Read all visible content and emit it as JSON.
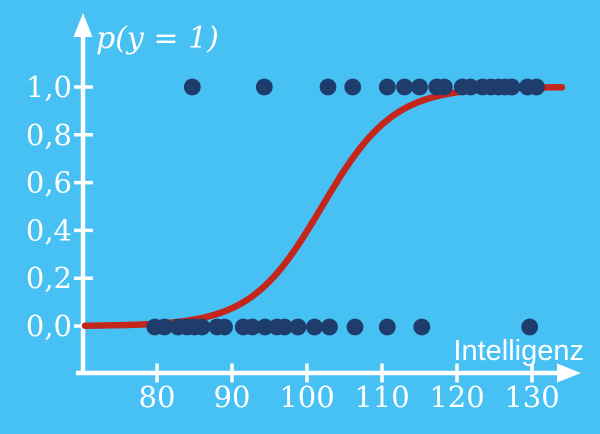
{
  "chart_data": {
    "type": "scatter",
    "title": "",
    "xlabel": "Intelligenz",
    "ylabel": "p(y = 1)",
    "xlim": [
      69,
      135.5
    ],
    "ylim": [
      0,
      1.2
    ],
    "grid": false,
    "legend": "none",
    "x_ticks": [
      {
        "value": 80,
        "label": "80"
      },
      {
        "value": 90,
        "label": "90"
      },
      {
        "value": 100,
        "label": "100"
      },
      {
        "value": 110,
        "label": "110"
      },
      {
        "value": 120,
        "label": "120"
      },
      {
        "value": 130,
        "label": "130"
      }
    ],
    "y_ticks": [
      {
        "value": 0.0,
        "label": "0,0"
      },
      {
        "value": 0.2,
        "label": "0,2"
      },
      {
        "value": 0.4,
        "label": "0,4"
      },
      {
        "value": 0.6,
        "label": "0,6"
      },
      {
        "value": 0.8,
        "label": "0,8"
      },
      {
        "value": 1.0,
        "label": "1,0"
      }
    ],
    "series": [
      {
        "name": "observations-y-equals-1",
        "type": "scatter",
        "y_value": 1,
        "x": [
          84.7,
          94.3,
          102.8,
          106.1,
          110.7,
          113.0,
          115.0,
          117.3,
          118.3,
          120.7,
          121.8,
          123.4,
          124.5,
          125.5,
          126.4,
          127.3,
          129.4,
          130.6
        ]
      },
      {
        "name": "observations-y-equals-0",
        "type": "scatter",
        "y_value": 0,
        "x": [
          79.7,
          81.0,
          82.8,
          84.0,
          85.0,
          86.0,
          88.0,
          89.0,
          91.5,
          92.7,
          94.4,
          96.0,
          97.0,
          98.8,
          101.0,
          103.0,
          106.4,
          110.7,
          115.3,
          129.7
        ]
      },
      {
        "name": "logistic-regression-fit",
        "type": "line",
        "model": "logistic",
        "k": 0.21,
        "x0": 102.0,
        "x_range": [
          70.4,
          134.2
        ]
      }
    ],
    "colors": {
      "background": "#47c1f3",
      "axis": "#ffffff",
      "tick_text": "#ffffff",
      "point": "#1e3c6c",
      "curve": "#c5261c"
    }
  }
}
